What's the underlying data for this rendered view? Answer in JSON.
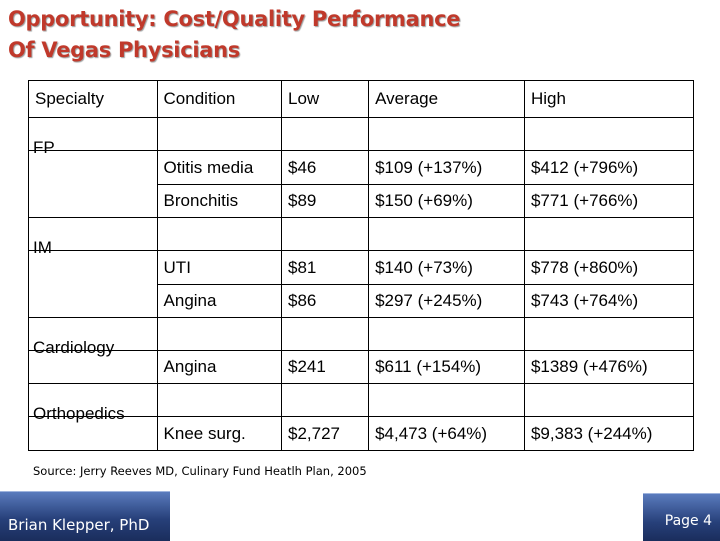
{
  "title": {
    "line1": "Opportunity: Cost/Quality Performance",
    "line2": "Of Vegas Physicians"
  },
  "table": {
    "headers": [
      "Specialty",
      "Condition",
      "Low",
      "Average",
      "High"
    ],
    "groups": [
      {
        "specialty": "FP",
        "rows": [
          [
            "Otitis media",
            "$46",
            "$109 (+137%)",
            "$412 (+796%)"
          ],
          [
            "Bronchitis",
            "$89",
            "$150 (+69%)",
            "$771 (+766%)"
          ]
        ]
      },
      {
        "specialty": "IM",
        "rows": [
          [
            "UTI",
            "$81",
            "$140 (+73%)",
            "$778 (+860%)"
          ],
          [
            "Angina",
            "$86",
            "$297 (+245%)",
            "$743 (+764%)"
          ]
        ]
      },
      {
        "specialty": "Cardiology",
        "rows": [
          [
            "Angina",
            "$241",
            "$611 (+154%)",
            "$1389 (+476%)"
          ]
        ]
      },
      {
        "specialty": "Orthopedics",
        "rows": [
          [
            "Knee surg.",
            "$2,727",
            "$4,473 (+64%)",
            "$9,383 (+244%)"
          ]
        ]
      }
    ]
  },
  "source": "Source: Jerry Reeves MD, Culinary Fund Heatlh Plan, 2005",
  "footer": {
    "author": "Brian Klepper, PhD",
    "page": "Page 4"
  },
  "colors": {
    "title": "#c0392b",
    "footer_bg": "#27407a"
  }
}
